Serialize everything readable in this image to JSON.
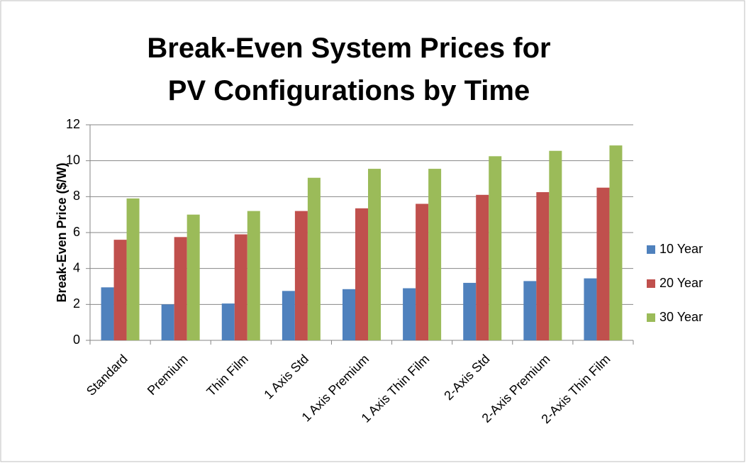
{
  "chart_data": {
    "type": "bar",
    "title": "Break-Even System Prices for PV Configurations by Time",
    "y_label": "Break-Even Price ($/W)",
    "categories": [
      "Standard",
      "Premium",
      "Thin Film",
      "1 Axis Std",
      "1 Axis Premium",
      "1 Axis Thin Film",
      "2-Axis Std",
      "2-Axis Premium",
      "2-Axis Thin Film"
    ],
    "series": [
      {
        "name": "10 Year",
        "color": "#4f81bd",
        "values": [
          2.95,
          2.0,
          2.05,
          2.75,
          2.85,
          2.9,
          3.2,
          3.3,
          3.45
        ]
      },
      {
        "name": "20 Year",
        "color": "#c0504d",
        "values": [
          5.6,
          5.75,
          5.9,
          7.2,
          7.35,
          7.6,
          8.1,
          8.25,
          8.5
        ]
      },
      {
        "name": "30 Year",
        "color": "#9bbb59",
        "values": [
          7.9,
          7.0,
          7.2,
          9.05,
          9.55,
          9.55,
          10.25,
          10.55,
          10.85
        ]
      }
    ],
    "ylim": [
      0,
      12
    ],
    "yticks": [
      0,
      2,
      4,
      6,
      8,
      10,
      12
    ],
    "grid": true,
    "legend": "right"
  }
}
